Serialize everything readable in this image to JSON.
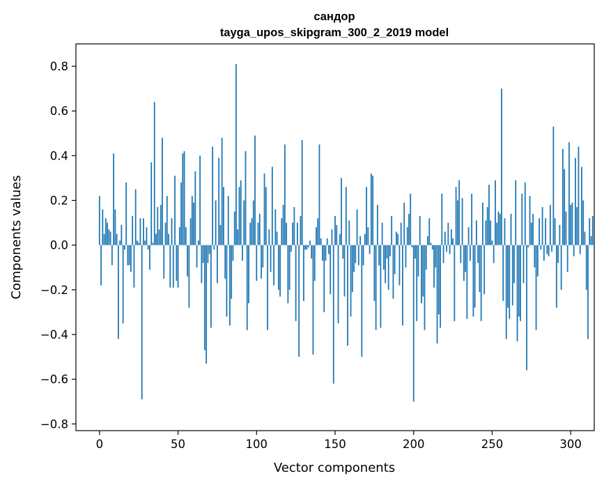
{
  "chart_data": {
    "type": "bar",
    "title_line1": "сандор",
    "title_line2": "tayga_upos_skipgram_300_2_2019 model",
    "xlabel": "Vector components",
    "ylabel": "Components values",
    "xlim": [
      -15,
      315
    ],
    "ylim": [
      -0.83,
      0.9
    ],
    "x_ticks": [
      0,
      50,
      100,
      150,
      200,
      250,
      300
    ],
    "x_tick_labels": [
      "0",
      "50",
      "100",
      "150",
      "200",
      "250",
      "300"
    ],
    "y_ticks": [
      -0.8,
      -0.6,
      -0.4,
      -0.2,
      0.0,
      0.2,
      0.4,
      0.6,
      0.8
    ],
    "y_tick_labels": [
      "−0.8",
      "−0.6",
      "−0.4",
      "−0.2",
      "0.0",
      "0.2",
      "0.4",
      "0.6",
      "0.8"
    ],
    "bar_color": "#1f77b4",
    "values": [
      0.22,
      -0.18,
      0.16,
      0.05,
      0.12,
      0.1,
      0.07,
      0.06,
      -0.09,
      0.41,
      0.16,
      0.05,
      -0.42,
      0.02,
      0.09,
      -0.35,
      -0.02,
      0.28,
      -0.09,
      -0.09,
      -0.12,
      0.13,
      -0.19,
      0.25,
      0.02,
      0.01,
      0.12,
      -0.69,
      0.12,
      0.02,
      0.08,
      -0.02,
      -0.11,
      0.37,
      0.01,
      0.64,
      0.05,
      0.17,
      0.07,
      0.18,
      0.48,
      -0.15,
      0.1,
      0.22,
      0.05,
      -0.19,
      0.12,
      -0.19,
      0.31,
      -0.16,
      -0.19,
      0.08,
      0.28,
      0.41,
      0.42,
      0.08,
      -0.14,
      -0.28,
      0.12,
      0.22,
      0.19,
      0.33,
      -0.1,
      0.02,
      0.4,
      -0.17,
      -0.08,
      -0.47,
      -0.53,
      -0.08,
      -0.04,
      -0.37,
      0.44,
      -0.02,
      0.2,
      -0.17,
      0.39,
      0.09,
      0.48,
      0.26,
      -0.15,
      -0.32,
      0.22,
      -0.36,
      -0.24,
      -0.07,
      0.15,
      0.81,
      0.07,
      0.26,
      0.29,
      -0.07,
      0.2,
      0.42,
      -0.38,
      -0.26,
      0.1,
      0.12,
      0.2,
      0.49,
      -0.16,
      0.1,
      0.14,
      -0.15,
      -0.1,
      0.32,
      0.26,
      -0.38,
      0.07,
      -0.12,
      0.35,
      -0.18,
      0.16,
      0.06,
      -0.2,
      -0.23,
      0.12,
      0.18,
      0.45,
      0.1,
      -0.26,
      -0.2,
      -0.03,
      0.1,
      0.17,
      -0.34,
      0.1,
      -0.5,
      0.13,
      0.47,
      -0.25,
      -0.02,
      -0.02,
      -0.01,
      0.02,
      -0.06,
      -0.49,
      -0.16,
      0.08,
      0.12,
      0.45,
      0.03,
      -0.07,
      -0.3,
      -0.07,
      0.03,
      -0.04,
      -0.22,
      0.07,
      -0.62,
      0.13,
      0.09,
      -0.35,
      0.05,
      0.3,
      -0.06,
      -0.23,
      0.26,
      -0.45,
      0.11,
      -0.32,
      -0.21,
      -0.12,
      -0.08,
      0.16,
      -0.09,
      0.04,
      -0.5,
      -0.09,
      0.05,
      0.26,
      0.08,
      -0.04,
      0.32,
      0.31,
      -0.25,
      -0.38,
      0.18,
      -0.09,
      -0.37,
      0.1,
      -0.11,
      -0.17,
      -0.06,
      -0.2,
      -0.05,
      0.13,
      -0.24,
      -0.13,
      0.06,
      0.05,
      -0.18,
      0.1,
      -0.36,
      0.19,
      -0.1,
      0.08,
      0.14,
      0.23,
      -0.01,
      -0.7,
      -0.06,
      -0.34,
      -0.14,
      0.13,
      -0.26,
      -0.23,
      -0.38,
      -0.11,
      0.04,
      0.12,
      0.01,
      -0.02,
      -0.19,
      -0.1,
      -0.44,
      -0.31,
      -0.37,
      0.23,
      -0.08,
      0.06,
      -0.03,
      0.1,
      -0.04,
      0.07,
      0.03,
      -0.34,
      0.26,
      0.2,
      0.29,
      -0.08,
      0.21,
      -0.16,
      -0.12,
      -0.33,
      0.08,
      -0.07,
      0.23,
      -0.32,
      -0.28,
      0.11,
      -0.08,
      -0.21,
      -0.34,
      0.19,
      -0.22,
      0.11,
      0.17,
      0.27,
      0.11,
      0.02,
      -0.08,
      0.29,
      0.1,
      0.15,
      0.14,
      0.7,
      -0.25,
      0.12,
      -0.42,
      -0.28,
      -0.33,
      0.14,
      -0.27,
      -0.17,
      0.29,
      -0.43,
      -0.32,
      -0.34,
      0.23,
      -0.17,
      0.28,
      -0.56,
      -0.01,
      0.22,
      0.1,
      0.14,
      -0.1,
      -0.38,
      -0.14,
      0.12,
      -0.02,
      0.17,
      -0.07,
      0.12,
      -0.04,
      -0.05,
      0.18,
      -0.03,
      0.53,
      0.12,
      -0.28,
      -0.08,
      0.09,
      -0.2,
      0.43,
      0.34,
      0.15,
      -0.12,
      0.46,
      0.18,
      0.19,
      -0.05,
      0.39,
      0.17,
      0.44,
      -0.04,
      0.35,
      0.2,
      0.06,
      -0.2,
      -0.42,
      0.12,
      0.04,
      0.13
    ]
  }
}
